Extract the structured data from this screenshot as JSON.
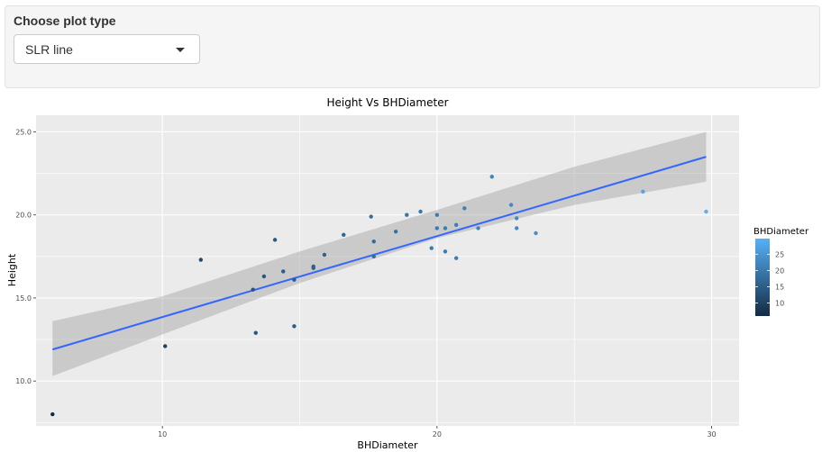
{
  "control": {
    "label": "Choose plot type",
    "selected": "SLR line"
  },
  "chart_data": {
    "type": "scatter",
    "title": "Height Vs BHDiameter",
    "xlabel": "BHDiameter",
    "ylabel": "Height",
    "xlim": [
      5.4,
      31.0
    ],
    "ylim": [
      7.3,
      26.0
    ],
    "xticks": [
      10,
      20,
      30
    ],
    "yticks": [
      10.0,
      15.0,
      20.0,
      25.0
    ],
    "grid": true,
    "points": [
      {
        "x": 6.0,
        "y": 8.0
      },
      {
        "x": 10.1,
        "y": 12.1
      },
      {
        "x": 11.4,
        "y": 17.3
      },
      {
        "x": 13.3,
        "y": 15.5
      },
      {
        "x": 13.4,
        "y": 12.9
      },
      {
        "x": 13.7,
        "y": 16.3
      },
      {
        "x": 14.1,
        "y": 18.5
      },
      {
        "x": 14.4,
        "y": 16.6
      },
      {
        "x": 14.8,
        "y": 16.1
      },
      {
        "x": 14.8,
        "y": 13.3
      },
      {
        "x": 15.5,
        "y": 16.8
      },
      {
        "x": 15.5,
        "y": 16.9
      },
      {
        "x": 15.9,
        "y": 17.6
      },
      {
        "x": 16.6,
        "y": 18.8
      },
      {
        "x": 17.6,
        "y": 19.9
      },
      {
        "x": 17.7,
        "y": 18.4
      },
      {
        "x": 17.7,
        "y": 17.5
      },
      {
        "x": 18.5,
        "y": 19.0
      },
      {
        "x": 18.9,
        "y": 20.0
      },
      {
        "x": 19.4,
        "y": 20.2
      },
      {
        "x": 19.8,
        "y": 18.0
      },
      {
        "x": 20.0,
        "y": 19.2
      },
      {
        "x": 20.0,
        "y": 20.0
      },
      {
        "x": 20.3,
        "y": 17.8
      },
      {
        "x": 20.3,
        "y": 19.2
      },
      {
        "x": 20.7,
        "y": 19.4
      },
      {
        "x": 20.7,
        "y": 17.4
      },
      {
        "x": 21.0,
        "y": 20.4
      },
      {
        "x": 21.5,
        "y": 19.2
      },
      {
        "x": 22.0,
        "y": 22.3
      },
      {
        "x": 22.7,
        "y": 20.6
      },
      {
        "x": 22.9,
        "y": 19.8
      },
      {
        "x": 22.9,
        "y": 19.2
      },
      {
        "x": 23.6,
        "y": 18.9
      },
      {
        "x": 27.5,
        "y": 21.4
      },
      {
        "x": 29.8,
        "y": 20.2
      }
    ],
    "fit_line": {
      "x": [
        6.0,
        29.8
      ],
      "y": [
        11.9,
        23.5
      ]
    },
    "confidence_band": {
      "x": [
        6.0,
        10.0,
        15.0,
        20.0,
        25.0,
        29.8
      ],
      "lower": [
        10.3,
        12.8,
        15.9,
        18.6,
        20.6,
        22.0
      ],
      "upper": [
        13.6,
        15.1,
        17.8,
        20.3,
        22.9,
        25.0
      ]
    },
    "legend": {
      "title": "BHDiameter",
      "position": "right",
      "range": [
        6.0,
        29.8
      ],
      "breaks": [
        10,
        15,
        20,
        25
      ],
      "low_color": "#132B43",
      "high_color": "#56B1F7"
    },
    "colors": {
      "panel": "#EBEBEB",
      "grid": "#FFFFFF",
      "line": "#3366FF",
      "band": "#999999"
    }
  }
}
